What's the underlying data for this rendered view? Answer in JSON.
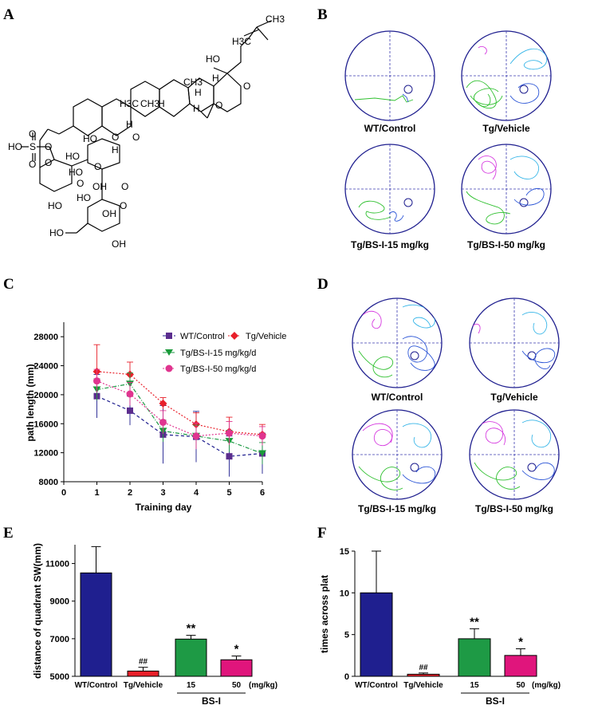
{
  "figure": {
    "panel_letters": [
      "A",
      "B",
      "C",
      "D",
      "E",
      "F"
    ]
  },
  "panel_a": {
    "atom_labels": [
      "H3C",
      "CH3",
      "HO",
      "H",
      "CH3",
      "H",
      "O",
      "H",
      "O",
      "H3C",
      "CH3",
      "H",
      "O",
      "H",
      "HO",
      "O",
      "O",
      "HO",
      "O",
      "HO",
      "O",
      "O",
      "HO",
      "HO",
      "O",
      "OH",
      "HO",
      "OH",
      "O",
      "HO",
      "OH",
      "H",
      "S",
      "O",
      "O"
    ]
  },
  "panel_b": {
    "labels": [
      "WT/Control",
      "Tg/Vehicle",
      "Tg/BS-I-15 mg/kg",
      "Tg/BS-I-50 mg/kg"
    ]
  },
  "panel_d": {
    "labels": [
      "WT/Control",
      "Tg/Vehicle",
      "Tg/BS-I-15 mg/kg",
      "Tg/BS-I-50 mg/kg"
    ]
  },
  "colors": {
    "navy": "#1f1f8f",
    "red": "#e8202a",
    "green": "#1e9a45",
    "magenta": "#e0157c",
    "purple": "#5b2d8e",
    "green_tri": "#1a9a3a",
    "pink": "#e0358f",
    "track_green": "#2fc02f",
    "track_blue": "#2b55d6",
    "track_cyan": "#38b6e8",
    "track_magenta": "#d63be0"
  },
  "chart_data": [
    {
      "id": "C",
      "type": "line",
      "xlabel": "Training day",
      "ylabel": "path length (mm)",
      "x": [
        1,
        2,
        3,
        4,
        5,
        6
      ],
      "xlim": [
        0,
        6
      ],
      "ylim": [
        8000,
        30000
      ],
      "xticks": [
        "0",
        "1",
        "2",
        "3",
        "4",
        "5",
        "6"
      ],
      "yticks": [
        "8000",
        "12000",
        "16000",
        "20000",
        "24000",
        "28000"
      ],
      "ytick_values": [
        8000,
        12000,
        16000,
        20000,
        24000,
        28000
      ],
      "legend": [
        "WT/Control",
        "Tg/Vehicle",
        "Tg/BS-I-15 mg/kg/d",
        "Tg/BS-I-50 mg/kg/d"
      ],
      "series": [
        {
          "name": "WT/Control",
          "values": [
            19800,
            17800,
            14500,
            14200,
            11500,
            11900
          ],
          "errors": [
            3000,
            2000,
            4000,
            3500,
            2800,
            2800
          ]
        },
        {
          "name": "Tg/Vehicle",
          "values": [
            23200,
            22800,
            18800,
            15900,
            14900,
            14500
          ],
          "errors": [
            3700,
            1700,
            800,
            1600,
            2000,
            1400
          ]
        },
        {
          "name": "Tg/BS-I-15 mg/kg/d",
          "values": [
            20700,
            21500,
            15000,
            14300,
            13600,
            11900
          ],
          "errors": [
            1500,
            1500,
            1500,
            1500,
            1500,
            1500
          ]
        },
        {
          "name": "Tg/BS-I-50 mg/kg/d",
          "values": [
            21900,
            20100,
            16200,
            14300,
            14700,
            14300
          ],
          "errors": [
            1600,
            1600,
            1600,
            1800,
            1600,
            1300
          ]
        }
      ]
    },
    {
      "id": "E",
      "type": "bar",
      "ylabel": "distance of  quadrant SW(mm)",
      "categories": [
        "WT/Control",
        "Tg/Vehicle",
        "15",
        "50"
      ],
      "values": [
        10500,
        5280,
        6980,
        5880
      ],
      "errors": [
        1400,
        200,
        200,
        200
      ],
      "ylim": [
        5000,
        12000
      ],
      "yticks": [
        "5000",
        "7000",
        "9000",
        "11000"
      ],
      "ytick_values": [
        5000,
        7000,
        9000,
        11000
      ],
      "annotations": [
        "",
        "##",
        "**",
        "*"
      ],
      "unit_label": "(mg/kg)",
      "group_label": "BS-I"
    },
    {
      "id": "F",
      "type": "bar",
      "ylabel": "times across plat",
      "categories": [
        "WT/Control",
        "Tg/Vehicle",
        "15",
        "50"
      ],
      "values": [
        10,
        0.25,
        4.5,
        2.5
      ],
      "errors": [
        5,
        0.15,
        1.2,
        0.8
      ],
      "ylim": [
        0,
        15
      ],
      "yticks": [
        "0",
        "5",
        "10",
        "15"
      ],
      "ytick_values": [
        0,
        5,
        10,
        15
      ],
      "annotations": [
        "",
        "##",
        "**",
        "*"
      ],
      "unit_label": "(mg/kg)",
      "group_label": "BS-I"
    }
  ]
}
